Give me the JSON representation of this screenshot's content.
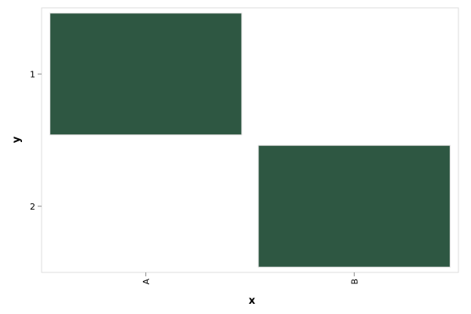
{
  "chart_data": {
    "type": "heatmap",
    "x_categories": [
      "A",
      "B"
    ],
    "y_categories": [
      "1",
      "2"
    ],
    "cells": [
      {
        "x": "A",
        "y": "1",
        "value": 1
      },
      {
        "x": "B",
        "y": "2",
        "value": 1
      }
    ],
    "xlabel": "x",
    "ylabel": "y",
    "grid": false,
    "legend": "none",
    "colors": {
      "cell": "#2e5742",
      "cell_stroke": "#dddddd",
      "frame": "#dddddd",
      "tick": "#888888"
    }
  }
}
